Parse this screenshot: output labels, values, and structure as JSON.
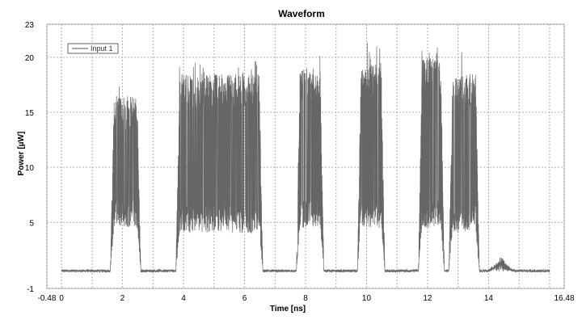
{
  "chart_data": {
    "type": "line",
    "title": "Waveform",
    "xlabel": "Time [ns]",
    "ylabel": "Power [µW]",
    "xlim": [
      -0.48,
      16.48
    ],
    "ylim": [
      -1,
      23
    ],
    "x_ticks": [
      -0.48,
      0,
      2,
      4,
      6,
      8,
      10,
      12,
      14,
      16.48
    ],
    "x_tick_labels": [
      "-0.48",
      "0",
      "2",
      "4",
      "6",
      "8",
      "10",
      "12",
      "14",
      "16.48"
    ],
    "x_grid": [
      -0.48,
      0,
      1,
      2,
      3,
      4,
      5,
      6,
      7,
      8,
      9,
      10,
      11,
      12,
      13,
      14,
      15,
      16,
      16.48
    ],
    "y_ticks": [
      -1,
      5,
      10,
      15,
      20,
      23
    ],
    "y_tick_labels": [
      "-1",
      "5",
      "10",
      "15",
      "20",
      "23"
    ],
    "grid": true,
    "legend": {
      "position": "top-left",
      "entries": [
        "Input 1"
      ]
    },
    "series": [
      {
        "name": "Input 1",
        "color": "#666666",
        "baseline": 0.6,
        "baseline_noise": 0.25,
        "pulses": [
          {
            "start": 1.6,
            "end": 2.6,
            "low": 4.5,
            "high": 15.0,
            "peak": 18.7
          },
          {
            "start": 3.75,
            "end": 6.6,
            "low": 4.0,
            "high": 17.0,
            "peak": 19.8
          },
          {
            "start": 7.7,
            "end": 8.6,
            "low": 4.5,
            "high": 17.5,
            "peak": 20.5
          },
          {
            "start": 9.7,
            "end": 10.6,
            "low": 4.5,
            "high": 18.0,
            "peak": 21.7
          },
          {
            "start": 11.7,
            "end": 12.55,
            "low": 4.5,
            "high": 18.5,
            "peak": 21.5
          },
          {
            "start": 12.7,
            "end": 13.7,
            "low": 4.0,
            "high": 17.0,
            "peak": 22.0
          }
        ],
        "small_bump": {
          "start": 14.0,
          "end": 14.8,
          "high": 1.8
        }
      }
    ]
  },
  "legend_label": "Input 1"
}
